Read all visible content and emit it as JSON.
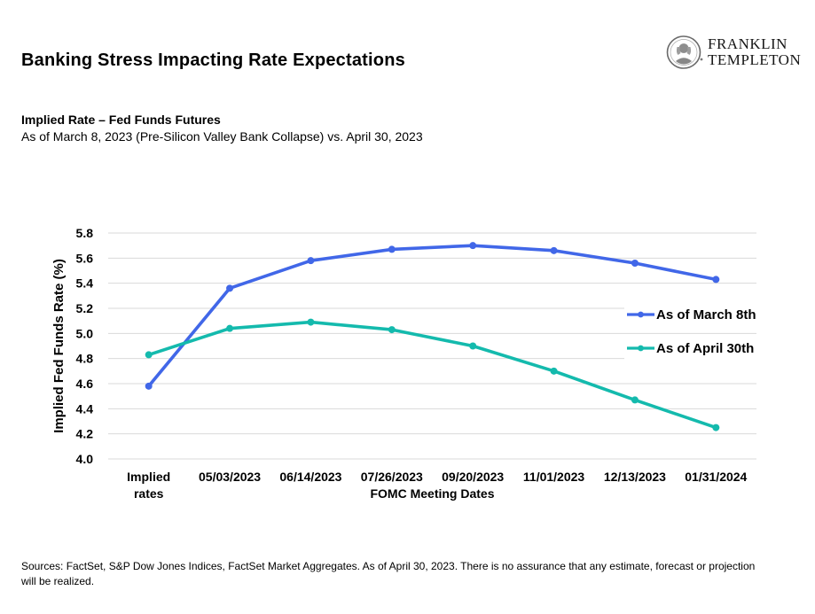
{
  "header": {
    "title": "Banking Stress Impacting Rate Expectations",
    "logo": {
      "line1": "FRANKLIN",
      "line2": "TEMPLETON"
    }
  },
  "subtitle": {
    "title": "Implied Rate – Fed Funds Futures",
    "description": "As of March 8, 2023 (Pre-Silicon Valley Bank Collapse) vs. April 30, 2023"
  },
  "chart_data": {
    "type": "line",
    "title": "Implied Rate – Fed Funds Futures",
    "categories": [
      "Implied rates",
      "05/03/2023",
      "06/14/2023",
      "07/26/2023",
      "09/20/2023",
      "11/01/2023",
      "12/13/2023",
      "01/31/2024"
    ],
    "category_label_lines": [
      [
        "Implied",
        "rates"
      ],
      [
        "05/03/2023"
      ],
      [
        "06/14/2023"
      ],
      [
        "07/26/2023"
      ],
      [
        "09/20/2023"
      ],
      [
        "11/01/2023"
      ],
      [
        "12/13/2023"
      ],
      [
        "01/31/2024"
      ]
    ],
    "series": [
      {
        "name": "As of March 8th",
        "color": "#4167E8",
        "values": [
          4.58,
          5.36,
          5.58,
          5.67,
          5.7,
          5.66,
          5.56,
          5.43
        ]
      },
      {
        "name": "As of April 30th",
        "color": "#14BAAD",
        "values": [
          4.83,
          5.04,
          5.09,
          5.03,
          4.9,
          4.7,
          4.47,
          4.25
        ]
      }
    ],
    "xlabel": "FOMC Meeting Dates",
    "ylabel": "Implied Fed Funds Rate (%)",
    "ylim": [
      4.0,
      5.8
    ],
    "ytick_step": 0.2,
    "grid": true,
    "gridline_color": "#D9D9D9",
    "legend_position": "inside-right"
  },
  "footer": {
    "text": "Sources: FactSet, S&P Dow Jones Indices, FactSet Market Aggregates. As of April 30, 2023. There is no assurance that any estimate, forecast or projection will be realized."
  }
}
